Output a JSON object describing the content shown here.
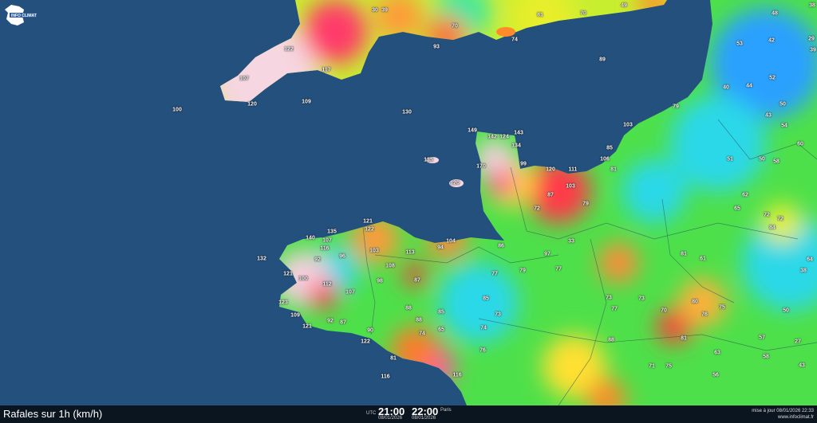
{
  "map": {
    "title": "Rafales sur 1h (km/h)",
    "logo_text": "INFO CLIMAT",
    "sea_color": "#24507e",
    "scale_colors": {
      "low": "#1e6cff",
      "mid_low": "#2de0e0",
      "mid": "#3be84a",
      "mid_high": "#e8ee2a",
      "high": "#ff8a2a",
      "very_high": "#ff2a4a",
      "extreme": "#ff7ad8",
      "max": "#f6d6e0"
    },
    "stations": [
      122,
      107,
      120,
      117,
      109,
      100,
      130,
      39,
      93,
      70,
      81,
      74,
      89,
      70,
      49,
      79,
      149,
      142,
      124,
      143,
      134,
      135,
      120,
      170,
      99,
      120,
      111,
      103,
      87,
      85,
      106,
      81,
      103,
      79,
      72,
      30,
      135,
      140,
      107,
      122,
      121,
      116,
      92,
      96,
      103,
      113,
      108,
      87,
      98,
      107,
      112,
      121,
      100,
      132,
      123,
      109,
      121,
      87,
      92,
      90,
      122,
      81,
      116,
      116,
      104,
      94,
      86,
      77,
      85,
      73,
      74,
      65,
      88,
      74,
      76,
      85,
      88,
      79,
      33,
      97,
      77,
      53,
      42,
      48,
      40,
      44,
      43,
      54,
      50,
      52,
      58,
      51,
      50,
      62,
      65,
      81,
      61,
      80,
      75,
      70,
      73,
      81,
      84,
      76,
      73,
      77,
      88,
      75,
      71,
      57,
      63,
      58,
      56,
      50,
      64,
      72,
      72,
      38,
      27,
      43,
      39,
      29,
      38,
      60
    ],
    "colorbar_note": ""
  },
  "footer": {
    "utc_label": "UTC",
    "utc_time": "21:00",
    "utc_date": "08/01/2026",
    "local_time": "22:00",
    "local_label": "Paris",
    "local_date": "08/01/2026",
    "updated": "mise à jour 08/01/2026 22:33",
    "site": "www.infoclimat.fr"
  }
}
